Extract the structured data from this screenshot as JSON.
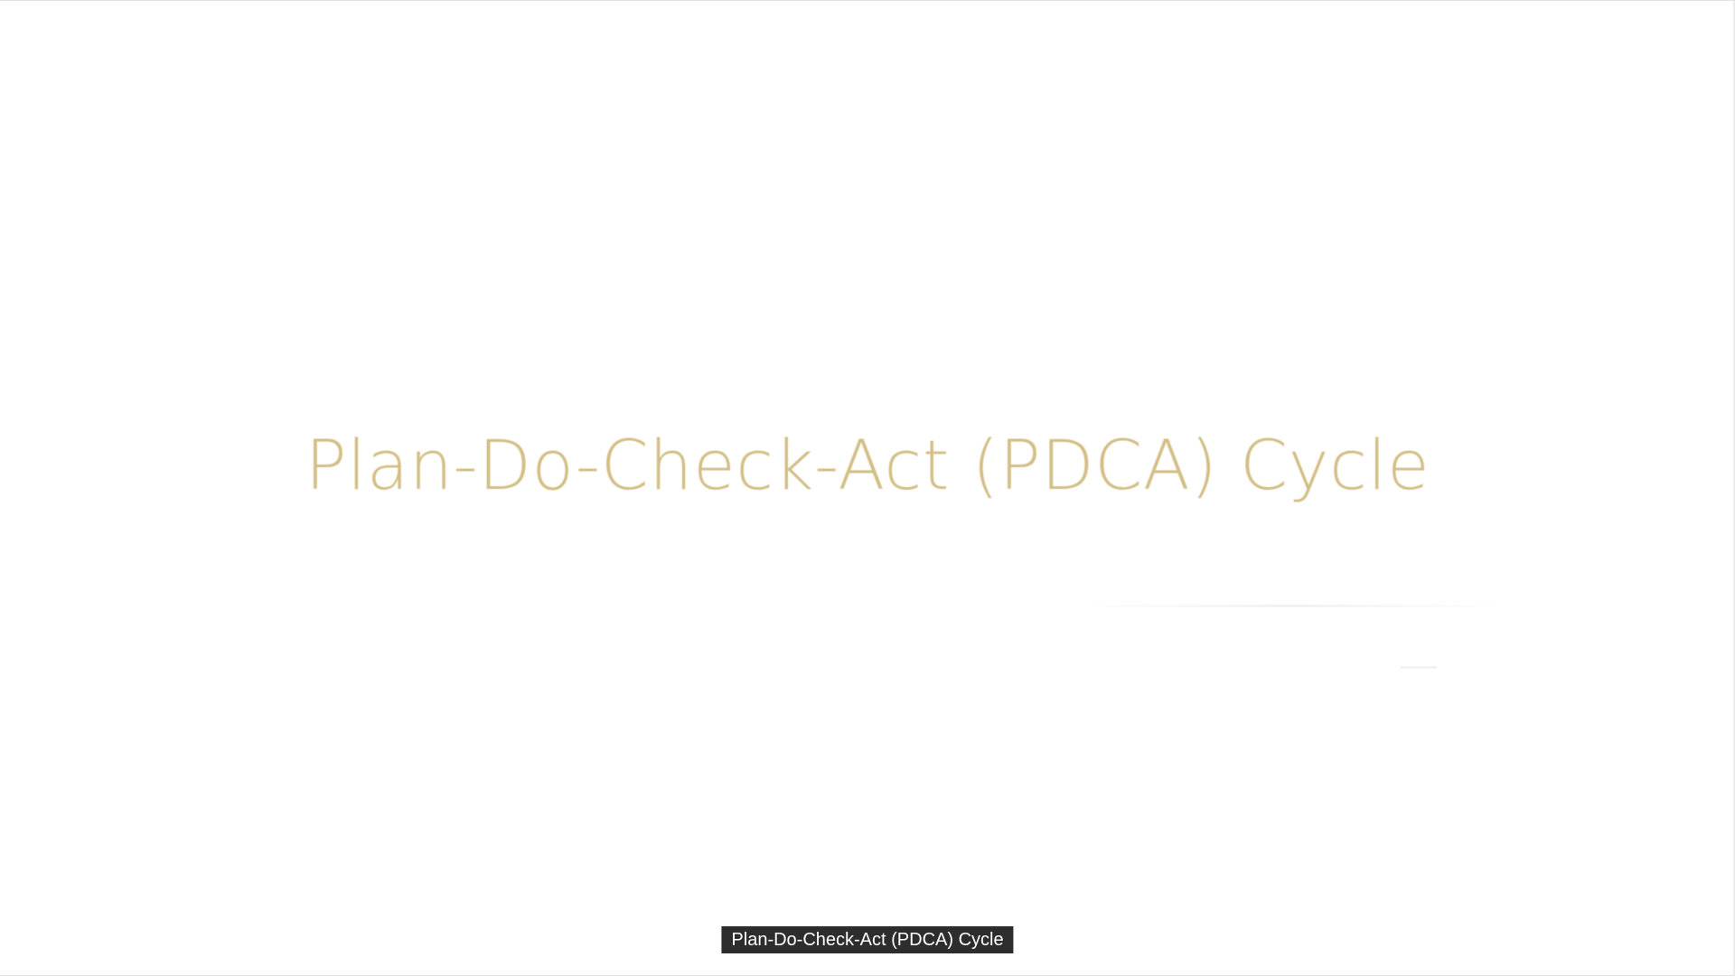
{
  "slide": {
    "title": "Plan-Do-Check-Act (PDCA) Cycle"
  },
  "caption": {
    "text": "Plan-Do-Check-Act (PDCA) Cycle"
  },
  "colors": {
    "background": "#ffffff",
    "title_text": "#d3bf86",
    "caption_background": "#2d2d2d",
    "caption_text": "#ffffff"
  }
}
